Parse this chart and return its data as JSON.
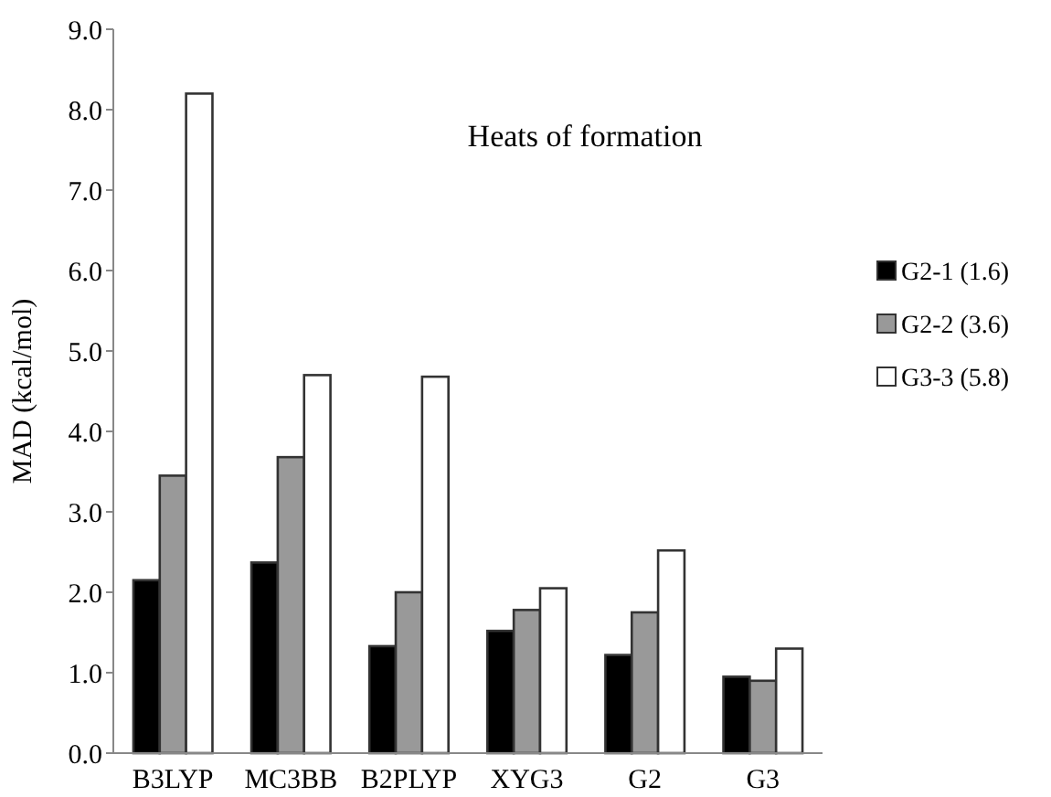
{
  "chart_data": {
    "type": "bar",
    "title": "Heats of formation",
    "ylabel": "MAD (kcal/mol)",
    "categories": [
      "B3LYP",
      "MC3BB",
      "B2PLYP",
      "XYG3",
      "G2",
      "G3"
    ],
    "series": [
      {
        "name": "G2-1 (1.6)",
        "color": "#000000",
        "values": [
          2.15,
          2.37,
          1.33,
          1.52,
          1.22,
          0.95
        ]
      },
      {
        "name": "G2-2 (3.6)",
        "color": "#999999",
        "values": [
          3.45,
          3.68,
          2.0,
          1.78,
          1.75,
          0.9
        ]
      },
      {
        "name": "G3-3 (5.8)",
        "color": "#ffffff",
        "values": [
          8.2,
          4.7,
          4.68,
          2.05,
          2.52,
          1.3
        ]
      }
    ],
    "ylim": [
      0,
      9
    ],
    "yticks": [
      {
        "value": 0,
        "label": "0.0"
      },
      {
        "value": 1,
        "label": "1.0"
      },
      {
        "value": 2,
        "label": "2.0"
      },
      {
        "value": 3,
        "label": "3.0"
      },
      {
        "value": 4,
        "label": "4.0"
      },
      {
        "value": 5,
        "label": "5.0"
      },
      {
        "value": 6,
        "label": "6.0"
      },
      {
        "value": 7,
        "label": "7.0"
      },
      {
        "value": 8,
        "label": "8.0"
      },
      {
        "value": 9,
        "label": "9.0"
      }
    ],
    "legend": "top right"
  }
}
